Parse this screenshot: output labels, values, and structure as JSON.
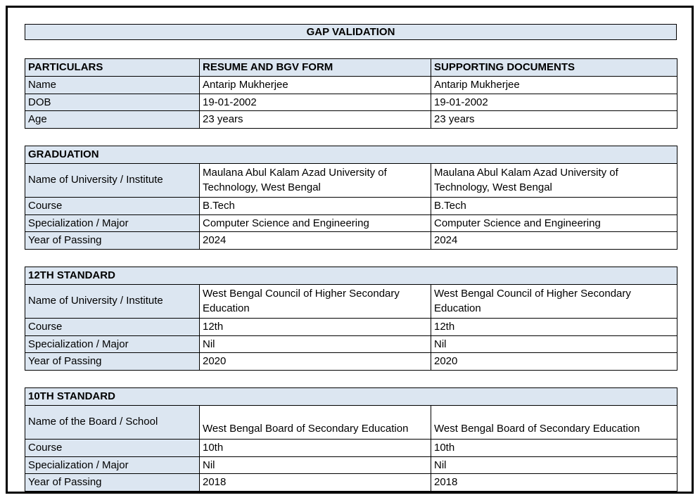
{
  "title_bar": {
    "label": "GAP VALIDATION"
  },
  "colors": {
    "header_fill": "#dce6f1",
    "cell_border": "#000000",
    "page_frame_border": "#000000",
    "page_background": "#ffffff",
    "text": "#000000"
  },
  "tables": [
    {
      "id": "particulars",
      "headers": [
        "PARTICULARS",
        "RESUME AND BGV FORM",
        "SUPPORTING DOCUMENTS"
      ],
      "rows": [
        {
          "label": "Name",
          "resume": "Antarip Mukherjee",
          "supporting": "Antarip Mukherjee"
        },
        {
          "label": "DOB",
          "resume": "19-01-2002",
          "supporting": "19-01-2002"
        },
        {
          "label": "Age",
          "resume": "23 years",
          "supporting": "23 years"
        }
      ]
    },
    {
      "id": "graduation",
      "section_title": "GRADUATION",
      "rows": [
        {
          "label": "Name of University / Institute",
          "resume": "Maulana Abul Kalam Azad University of Technology, West Bengal",
          "supporting": "Maulana Abul Kalam Azad University of Technology, West Bengal"
        },
        {
          "label": "Course",
          "resume": "B.Tech",
          "supporting": "B.Tech"
        },
        {
          "label": "Specialization / Major",
          "resume": "Computer Science and Engineering",
          "supporting": "Computer Science and Engineering"
        },
        {
          "label": "Year of Passing",
          "resume": "2024",
          "supporting": "2024"
        }
      ]
    },
    {
      "id": "twelfth-standard",
      "section_title": "12TH STANDARD",
      "rows": [
        {
          "label": "Name of University / Institute",
          "resume": "West Bengal Council of Higher Secondary Education",
          "supporting": "West Bengal Council of Higher Secondary Education"
        },
        {
          "label": "Course",
          "resume": "12th",
          "supporting": "12th"
        },
        {
          "label": "Specialization / Major",
          "resume": "Nil",
          "supporting": "Nil"
        },
        {
          "label": "Year of Passing",
          "resume": "2020",
          "supporting": "2020"
        }
      ]
    },
    {
      "id": "tenth-standard",
      "section_title": "10TH STANDARD",
      "rows": [
        {
          "label": "Name of the Board / School",
          "resume": "West Bengal Board of Secondary Education",
          "supporting": "West Bengal Board of Secondary Education"
        },
        {
          "label": "Course",
          "resume": "10th",
          "supporting": "10th"
        },
        {
          "label": "Specialization / Major",
          "resume": "Nil",
          "supporting": "Nil"
        },
        {
          "label": "Year of Passing",
          "resume": "2018",
          "supporting": "2018"
        }
      ]
    }
  ]
}
